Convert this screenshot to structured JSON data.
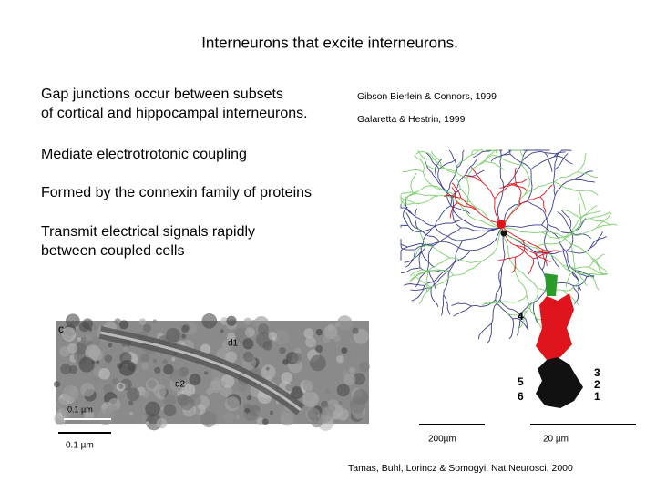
{
  "title": "Interneurons that excite interneurons.",
  "points": [
    {
      "lines": [
        "Gap junctions occur between subsets",
        "of cortical and hippocampal  interneurons."
      ]
    },
    {
      "lines": [
        "Mediate electrotrotonic coupling"
      ]
    },
    {
      "lines": [
        "Formed by the connexin family of proteins"
      ]
    },
    {
      "lines": [
        "Transmit electrical signals rapidly",
        "between coupled cells"
      ]
    }
  ],
  "references": [
    "Gibson Bierlein & Connors, 1999",
    "Galaretta & Hestrin, 1999"
  ],
  "micrograph": {
    "panel_label": "c",
    "labels": [
      "d1",
      "d2"
    ],
    "inset_scale": "0.1 µm",
    "scale": "0.1 µm"
  },
  "neuron_figure": {
    "cell_numbers": [
      "4",
      "5",
      "6",
      "3",
      "2",
      "1"
    ],
    "scale_left": "200µm",
    "scale_right": "20 µm",
    "credit": "Tamas, Buhl, Lorincz & Somogyi, Nat Neurosci, 2000"
  }
}
